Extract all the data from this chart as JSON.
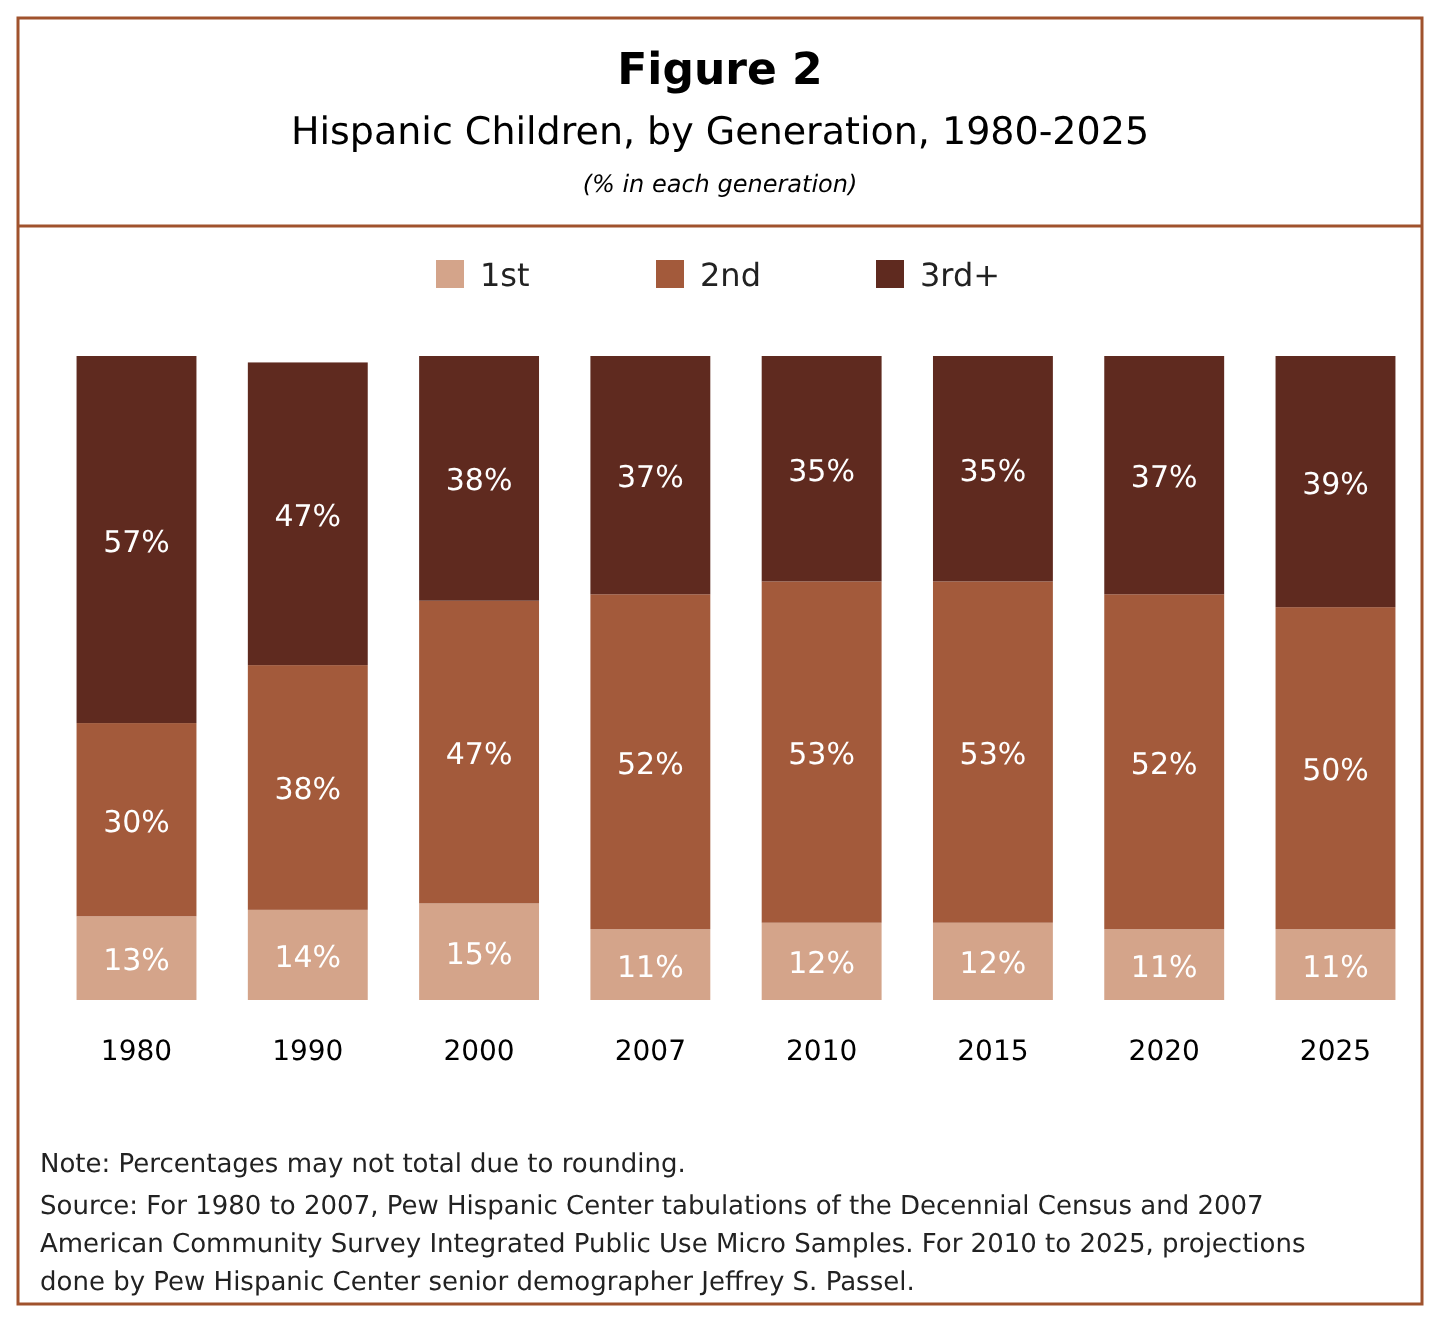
{
  "chart_data": {
    "type": "bar",
    "stacked": true,
    "title": "Figure 2",
    "subtitle": "Hispanic Children, by Generation, 1980-2025",
    "legend": "top",
    "categories": [
      "1980",
      "1990",
      "2000",
      "2007",
      "2010",
      "2015",
      "2020",
      "2025"
    ],
    "series": [
      {
        "name": "1st",
        "color": "#d4a48a",
        "values": [
          13,
          14,
          15,
          11,
          12,
          12,
          11,
          11
        ],
        "value_labels": [
          "13%",
          "14%",
          "15%",
          "11%",
          "12%",
          "12%",
          "11%",
          "11%"
        ]
      },
      {
        "name": "2nd",
        "color": "#a35a3b",
        "values": [
          30,
          38,
          47,
          52,
          53,
          53,
          52,
          50
        ],
        "value_labels": [
          "30%",
          "38%",
          "47%",
          "52%",
          "53%",
          "53%",
          "52%",
          "50%"
        ]
      },
      {
        "name": "3rd+",
        "color": "#5f2a1f",
        "values": [
          57,
          47,
          38,
          37,
          35,
          35,
          37,
          39
        ],
        "value_labels": [
          "57%",
          "47%",
          "38%",
          "37%",
          "35%",
          "35%",
          "37%",
          "39%"
        ]
      }
    ],
    "annotations": [
      "(% in each generation)",
      "Note: Percentages may not total due to rounding.",
      "Source: For 1980 to 2007, Pew Hispanic Center tabulations of the Decennial Census and 2007 American Community Survey Integrated Public Use Micro Samples. For 2010 to 2025, projections done by Pew Hispanic Center senior demographer Jeffrey S. Passel."
    ]
  }
}
